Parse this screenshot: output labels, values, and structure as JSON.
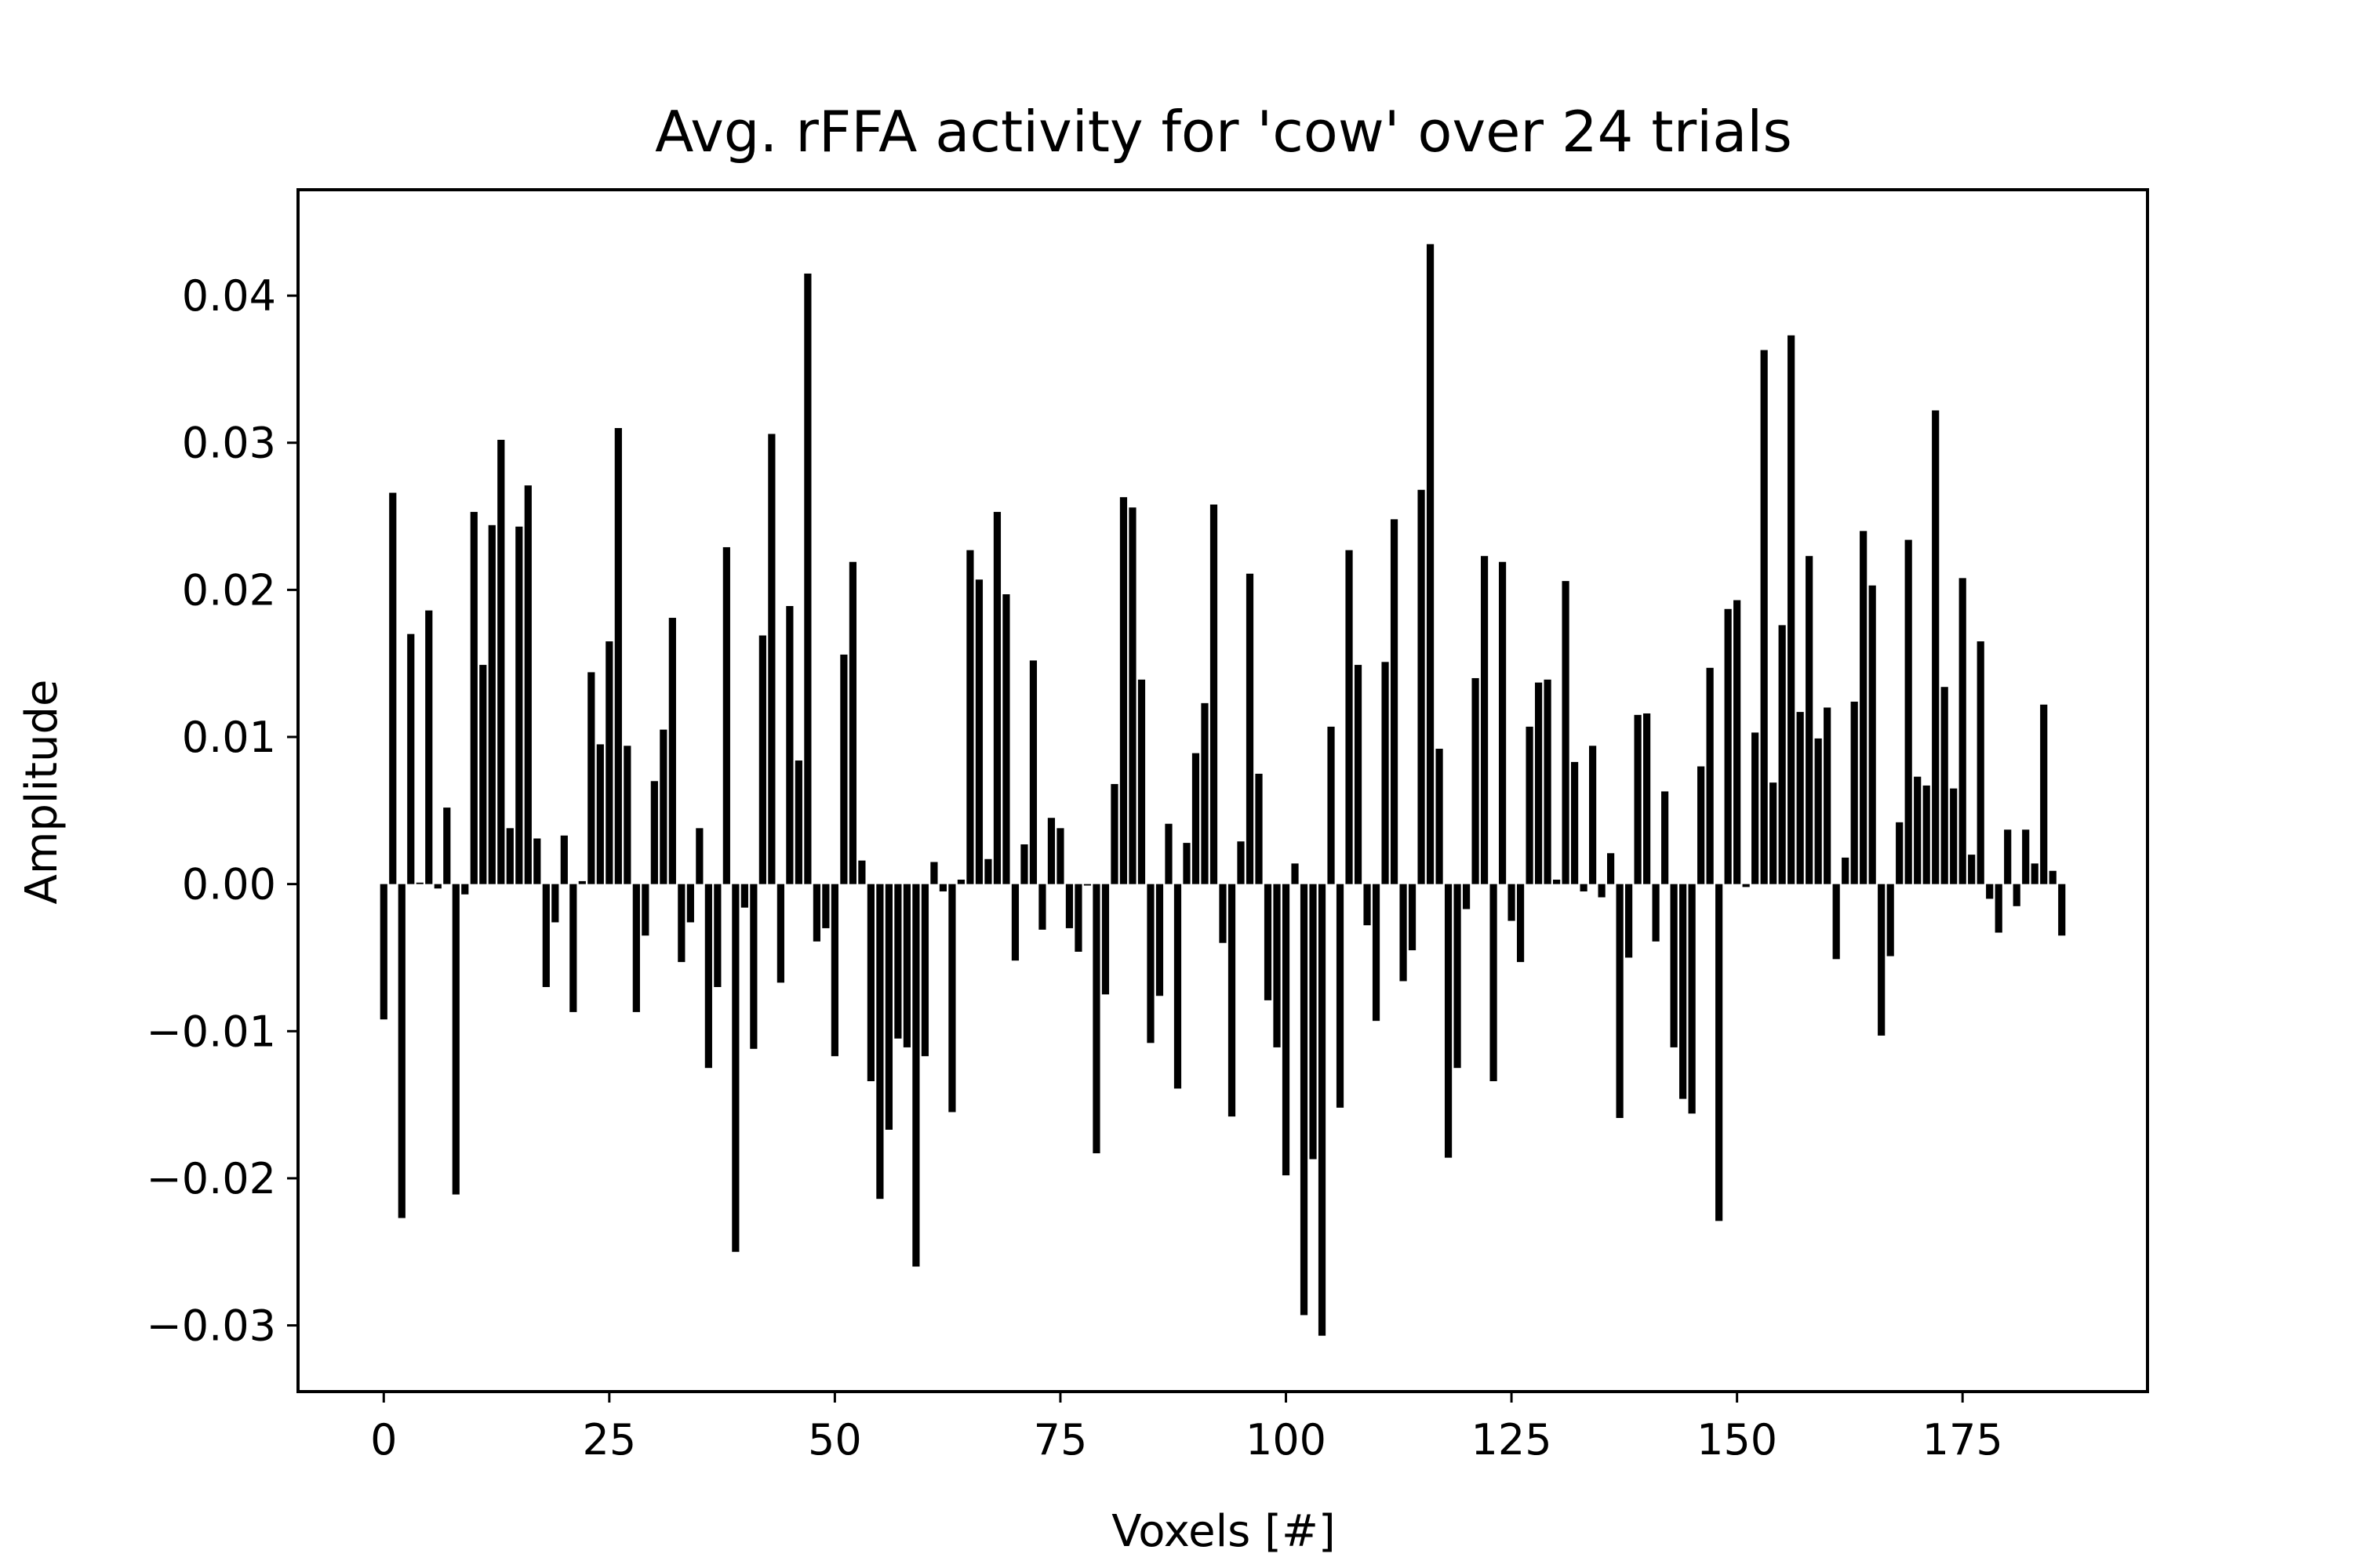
{
  "chart_data": {
    "type": "bar",
    "title": "Avg. rFFA activity for 'cow' over 24 trials",
    "xlabel": "Voxels [#]",
    "ylabel": "Amplitude",
    "xlim": [
      -9.5,
      195.5
    ],
    "ylim": [
      -0.0345,
      0.0472
    ],
    "xticks": [
      0,
      25,
      50,
      75,
      100,
      125,
      150,
      175
    ],
    "xtick_labels": [
      "0",
      "25",
      "50",
      "75",
      "100",
      "125",
      "150",
      "175"
    ],
    "yticks": [
      -0.03,
      -0.02,
      -0.01,
      0.0,
      0.01,
      0.02,
      0.03,
      0.04
    ],
    "ytick_labels": [
      "−0.03",
      "−0.02",
      "−0.01",
      "0.00",
      "0.01",
      "0.02",
      "0.03",
      "0.04"
    ],
    "grid": false,
    "bar_color": "#000000",
    "x": [
      0,
      1,
      2,
      3,
      4,
      5,
      6,
      7,
      8,
      9,
      10,
      11,
      12,
      13,
      14,
      15,
      16,
      17,
      18,
      19,
      20,
      21,
      22,
      23,
      24,
      25,
      26,
      27,
      28,
      29,
      30,
      31,
      32,
      33,
      34,
      35,
      36,
      37,
      38,
      39,
      40,
      41,
      42,
      43,
      44,
      45,
      46,
      47,
      48,
      49,
      50,
      51,
      52,
      53,
      54,
      55,
      56,
      57,
      58,
      59,
      60,
      61,
      62,
      63,
      64,
      65,
      66,
      67,
      68,
      69,
      70,
      71,
      72,
      73,
      74,
      75,
      76,
      77,
      78,
      79,
      80,
      81,
      82,
      83,
      84,
      85,
      86,
      87,
      88,
      89,
      90,
      91,
      92,
      93,
      94,
      95,
      96,
      97,
      98,
      99,
      100,
      101,
      102,
      103,
      104,
      105,
      106,
      107,
      108,
      109,
      110,
      111,
      112,
      113,
      114,
      115,
      116,
      117,
      118,
      119,
      120,
      121,
      122,
      123,
      124,
      125,
      126,
      127,
      128,
      129,
      130,
      131,
      132,
      133,
      134,
      135,
      136,
      137,
      138,
      139,
      140,
      141,
      142,
      143,
      144,
      145,
      146,
      147,
      148,
      149,
      150,
      151,
      152,
      153,
      154,
      155,
      156,
      157,
      158,
      159,
      160,
      161,
      162,
      163,
      164,
      165,
      166,
      167,
      168,
      169,
      170,
      171,
      172,
      173,
      174,
      175,
      176,
      177,
      178,
      179,
      180,
      181,
      182,
      183,
      184,
      185,
      186
    ],
    "values": [
      -0.0092,
      0.0266,
      -0.0227,
      0.017,
      0.0001,
      0.0186,
      -0.0003,
      0.0052,
      -0.0211,
      -0.0007,
      0.0253,
      0.0149,
      0.0244,
      0.0302,
      0.0038,
      0.0243,
      0.0271,
      0.0031,
      -0.007,
      -0.0026,
      0.0033,
      -0.0087,
      0.0002,
      0.0144,
      0.0095,
      0.0165,
      0.031,
      0.0094,
      -0.0087,
      -0.0035,
      0.007,
      0.0105,
      0.0181,
      -0.0053,
      -0.0026,
      0.0038,
      -0.0125,
      -0.007,
      0.0229,
      -0.025,
      -0.0016,
      -0.0112,
      0.0169,
      0.0306,
      -0.0067,
      0.0189,
      0.0084,
      0.0415,
      -0.0039,
      -0.003,
      -0.0117,
      0.0156,
      0.0219,
      0.0016,
      -0.0134,
      -0.0214,
      -0.0167,
      -0.0105,
      -0.0111,
      -0.026,
      -0.0117,
      0.0015,
      -0.0005,
      -0.0155,
      0.0003,
      0.0227,
      0.0207,
      0.0017,
      0.0253,
      0.0197,
      -0.0052,
      0.0027,
      0.0152,
      -0.0031,
      0.0045,
      0.0038,
      -0.003,
      -0.0046,
      -0.0001,
      -0.0183,
      -0.0075,
      0.0068,
      0.0263,
      0.0256,
      0.0139,
      -0.0108,
      -0.0076,
      0.0041,
      -0.0139,
      0.0028,
      0.0089,
      0.0123,
      0.0258,
      -0.004,
      -0.0158,
      0.0029,
      0.0211,
      0.0075,
      -0.0079,
      -0.0111,
      -0.0198,
      0.0014,
      -0.0293,
      -0.0187,
      -0.0307,
      0.0107,
      -0.0152,
      0.0227,
      0.0149,
      -0.0028,
      -0.0093,
      0.0151,
      0.0248,
      -0.0066,
      -0.0045,
      0.0268,
      0.0435,
      0.0092,
      -0.0186,
      -0.0125,
      -0.0017,
      0.014,
      0.0223,
      -0.0134,
      0.0219,
      -0.0025,
      -0.0053,
      0.0107,
      0.0137,
      0.0139,
      0.0003,
      0.0206,
      0.0083,
      -0.0005,
      0.0094,
      -0.0009,
      0.0021,
      -0.0159,
      -0.005,
      0.0115,
      0.0116,
      -0.0039,
      0.0063,
      -0.0111,
      -0.0146,
      -0.0156,
      0.008,
      0.0147,
      -0.0229,
      0.0187,
      0.0193,
      -0.0002,
      0.0103,
      0.0363,
      0.0069,
      0.0176,
      0.0373,
      0.0117,
      0.0223,
      0.0099,
      0.012,
      -0.0051,
      0.0018,
      0.0124,
      0.024,
      0.0203,
      -0.0103,
      -0.0049,
      0.0042,
      0.0234,
      0.0073,
      0.0067,
      0.0322,
      0.0134,
      0.0065,
      0.0208,
      0.002,
      0.0165,
      -0.001,
      -0.0033,
      0.0037,
      -0.0015,
      0.0037,
      0.0014,
      0.0122,
      0.0009,
      -0.0035
    ]
  }
}
